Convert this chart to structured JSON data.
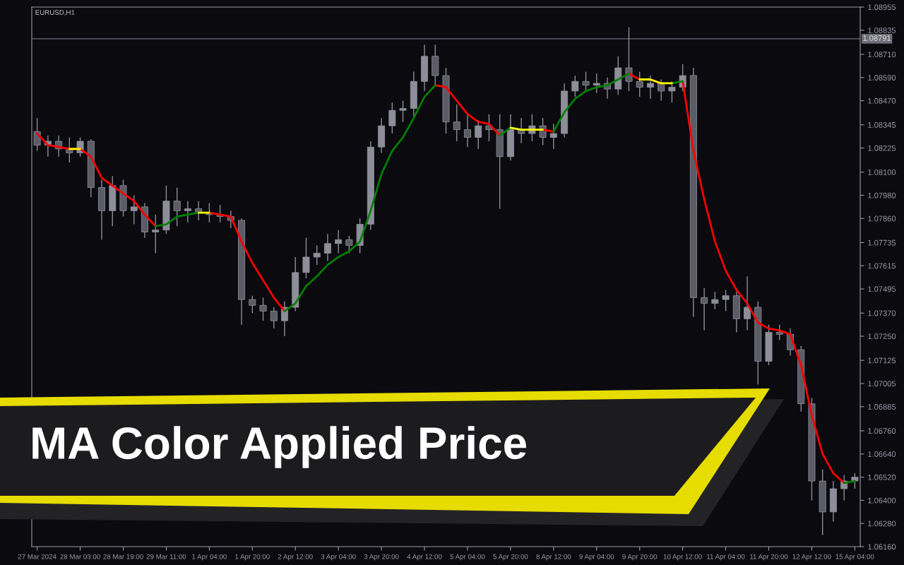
{
  "chart_data": {
    "type": "candlestick",
    "title": "MA Color Applied Price",
    "subtitle": "EURUSD,H1",
    "categories": [
      "27 Mar 2024",
      null,
      null,
      null,
      "28 Mar 03:00",
      null,
      null,
      null,
      "28 Mar 19:00",
      null,
      null,
      null,
      "29 Mar 11:00",
      null,
      null,
      null,
      "1 Apr 04:00",
      null,
      null,
      null,
      "1 Apr 20:00",
      null,
      null,
      null,
      "2 Apr 12:00",
      null,
      null,
      null,
      "3 Apr 04:00",
      null,
      null,
      null,
      "3 Apr 20:00",
      null,
      null,
      null,
      "4 Apr 12:00",
      null,
      null,
      null,
      "5 Apr 04:00",
      null,
      null,
      null,
      "5 Apr 20:00",
      null,
      null,
      null,
      "8 Apr 12:00",
      null,
      null,
      null,
      "9 Apr 04:00",
      null,
      null,
      null,
      "9 Apr 20:00",
      null,
      null,
      null,
      "10 Apr 12:00",
      null,
      null,
      null,
      "11 Apr 04:00",
      null,
      null,
      null,
      "11 Apr 20:00",
      null,
      null,
      null,
      "12 Apr 12:00",
      null,
      null,
      null,
      "15 Apr 04:00"
    ],
    "series": [
      {
        "color": "#8e8e9a",
        "ohlc": [
          [
            1.0831,
            1.0838,
            1.0821,
            1.0824
          ],
          [
            1.0824,
            1.0829,
            1.0818,
            1.0826
          ],
          [
            1.0826,
            1.0829,
            1.0818,
            1.0822
          ],
          [
            1.0822,
            1.0828,
            1.0815,
            1.082
          ],
          [
            1.082,
            1.0828,
            1.0818,
            1.0826
          ],
          [
            1.0826,
            1.0827,
            1.0797,
            1.0802
          ],
          [
            1.0802,
            1.0806,
            1.0775,
            1.079
          ],
          [
            1.079,
            1.0808,
            1.0782,
            1.0803
          ],
          [
            1.0803,
            1.0806,
            1.0787,
            1.079
          ],
          [
            1.079,
            1.0798,
            1.0783,
            1.0792
          ],
          [
            1.0792,
            1.0794,
            1.0776,
            1.0779
          ],
          [
            1.0779,
            1.0788,
            1.0768,
            1.078
          ],
          [
            1.078,
            1.0803,
            1.0778,
            1.0795
          ],
          [
            1.0795,
            1.0802,
            1.0782,
            1.079
          ],
          [
            1.079,
            1.0795,
            1.0784,
            1.0791
          ],
          [
            1.0791,
            1.0795,
            1.0785,
            1.0789
          ],
          [
            1.0789,
            1.0794,
            1.0784,
            1.0788
          ],
          [
            1.0788,
            1.0793,
            1.0784,
            1.0787
          ],
          [
            1.0787,
            1.079,
            1.0781,
            1.0785
          ],
          [
            1.0785,
            1.0786,
            1.0731,
            1.0744
          ],
          [
            1.0744,
            1.0746,
            1.0737,
            1.0741
          ],
          [
            1.0741,
            1.0745,
            1.0733,
            1.0738
          ],
          [
            1.0738,
            1.074,
            1.0729,
            1.0733
          ],
          [
            1.0733,
            1.0743,
            1.0725,
            1.074
          ],
          [
            1.074,
            1.0766,
            1.0738,
            1.0758
          ],
          [
            1.0758,
            1.0776,
            1.0755,
            1.0766
          ],
          [
            1.0766,
            1.0772,
            1.0762,
            1.0768
          ],
          [
            1.0768,
            1.0778,
            1.0764,
            1.0773
          ],
          [
            1.0773,
            1.078,
            1.0768,
            1.0775
          ],
          [
            1.0775,
            1.0777,
            1.0768,
            1.0772
          ],
          [
            1.0772,
            1.0786,
            1.0768,
            1.0783
          ],
          [
            1.0783,
            1.0826,
            1.078,
            1.0823
          ],
          [
            1.0823,
            1.0838,
            1.082,
            1.0834
          ],
          [
            1.0834,
            1.0846,
            1.083,
            1.0842
          ],
          [
            1.0842,
            1.0847,
            1.0836,
            1.0843
          ],
          [
            1.0843,
            1.0862,
            1.0838,
            1.0857
          ],
          [
            1.0857,
            1.0876,
            1.0852,
            1.087
          ],
          [
            1.087,
            1.0876,
            1.0855,
            1.086
          ],
          [
            1.086,
            1.0864,
            1.083,
            1.0836
          ],
          [
            1.0836,
            1.0845,
            1.0826,
            1.0832
          ],
          [
            1.0832,
            1.084,
            1.0823,
            1.0828
          ],
          [
            1.0828,
            1.0837,
            1.0822,
            1.0834
          ],
          [
            1.0834,
            1.084,
            1.0826,
            1.0832
          ],
          [
            1.0832,
            1.084,
            1.0791,
            1.0818
          ],
          [
            1.0818,
            1.084,
            1.0816,
            1.0832
          ],
          [
            1.0832,
            1.0838,
            1.0825,
            1.083
          ],
          [
            1.083,
            1.084,
            1.0826,
            1.0834
          ],
          [
            1.0834,
            1.0838,
            1.0824,
            1.0828
          ],
          [
            1.0828,
            1.0835,
            1.0822,
            1.083
          ],
          [
            1.083,
            1.0856,
            1.0828,
            1.0852
          ],
          [
            1.0852,
            1.086,
            1.0849,
            1.0857
          ],
          [
            1.0857,
            1.0862,
            1.0852,
            1.0855
          ],
          [
            1.0855,
            1.0861,
            1.0851,
            1.0856
          ],
          [
            1.0856,
            1.0859,
            1.0848,
            1.0853
          ],
          [
            1.0853,
            1.087,
            1.085,
            1.0864
          ],
          [
            1.0864,
            1.0885,
            1.0852,
            1.0857
          ],
          [
            1.0857,
            1.0862,
            1.0849,
            1.0854
          ],
          [
            1.0854,
            1.086,
            1.0848,
            1.0856
          ],
          [
            1.0856,
            1.0858,
            1.0847,
            1.0852
          ],
          [
            1.0852,
            1.0857,
            1.0846,
            1.0854
          ],
          [
            1.0854,
            1.0866,
            1.0852,
            1.086
          ],
          [
            1.086,
            1.0864,
            1.0735,
            1.0745
          ],
          [
            1.0745,
            1.075,
            1.0728,
            1.0742
          ],
          [
            1.0742,
            1.0748,
            1.0739,
            1.0744
          ],
          [
            1.0744,
            1.0749,
            1.0738,
            1.0746
          ],
          [
            1.0746,
            1.0748,
            1.0727,
            1.0734
          ],
          [
            1.0734,
            1.0756,
            1.0728,
            1.074
          ],
          [
            1.074,
            1.0743,
            1.07,
            1.0712
          ],
          [
            1.0712,
            1.0731,
            1.071,
            1.0727
          ],
          [
            1.0727,
            1.0731,
            1.0723,
            1.0726
          ],
          [
            1.0726,
            1.0729,
            1.0715,
            1.0718
          ],
          [
            1.0718,
            1.072,
            1.0686,
            1.069
          ],
          [
            1.069,
            1.0693,
            1.064,
            1.065
          ],
          [
            1.065,
            1.0656,
            1.0622,
            1.0634
          ],
          [
            1.0634,
            1.065,
            1.0629,
            1.0646
          ],
          [
            1.0646,
            1.0653,
            1.064,
            1.065
          ],
          [
            1.065,
            1.0654,
            1.0646,
            1.0652
          ]
        ]
      },
      {
        "type": "line",
        "color": "#ff0000",
        "values": [
          1.083,
          1.0824,
          1.0823,
          1.0822,
          1.0822,
          1.0818,
          1.0807,
          1.0803,
          1.0799,
          1.0795,
          1.0788,
          1.0782,
          null,
          null,
          null,
          null,
          1.0789,
          1.0788,
          1.0787,
          1.0774,
          1.0763,
          1.0754,
          1.0745,
          1.0738,
          null,
          null,
          null,
          null,
          null,
          null,
          null,
          null,
          null,
          null,
          null,
          null,
          null,
          1.0855,
          1.0854,
          1.0847,
          1.084,
          1.0836,
          1.0835,
          1.0829,
          null,
          null,
          null,
          1.0832,
          1.0831,
          null,
          null,
          null,
          null,
          null,
          null,
          1.0861,
          1.0858,
          1.0858,
          1.0856,
          null,
          1.0857,
          1.0821,
          1.0796,
          1.0774,
          1.0759,
          1.0749,
          1.0742,
          1.0732,
          1.0729,
          1.0728,
          1.0726,
          1.071,
          1.0684,
          1.0664,
          1.0654,
          1.0649,
          null
        ]
      },
      {
        "type": "line",
        "color": "#008000",
        "values": [
          null,
          null,
          null,
          null,
          null,
          null,
          null,
          null,
          null,
          null,
          null,
          1.0782,
          1.0783,
          1.0787,
          1.0788,
          1.0789,
          null,
          null,
          null,
          null,
          null,
          null,
          null,
          1.0738,
          1.0742,
          1.0751,
          1.0756,
          1.0762,
          1.0766,
          1.0769,
          1.0774,
          1.079,
          1.0809,
          1.0821,
          1.0828,
          1.0838,
          1.0849,
          1.0855,
          null,
          null,
          null,
          null,
          null,
          1.0829,
          1.0833,
          null,
          null,
          null,
          1.0831,
          1.0841,
          1.0848,
          1.0852,
          1.0854,
          1.0855,
          1.0858,
          1.0861,
          null,
          null,
          null,
          1.0856,
          1.0857,
          null,
          null,
          null,
          null,
          null,
          null,
          null,
          null,
          null,
          null,
          null,
          null,
          null,
          null,
          1.0649,
          1.065
        ]
      },
      {
        "type": "line",
        "color": "#ffff00",
        "values": [
          null,
          null,
          null,
          1.0822,
          1.0822,
          null,
          null,
          null,
          null,
          null,
          null,
          null,
          null,
          null,
          null,
          1.0789,
          1.0789,
          null,
          null,
          null,
          null,
          null,
          null,
          null,
          null,
          null,
          null,
          null,
          null,
          null,
          null,
          null,
          null,
          null,
          null,
          null,
          null,
          null,
          null,
          null,
          null,
          null,
          null,
          null,
          1.0833,
          1.0832,
          1.0832,
          1.0832,
          null,
          null,
          null,
          null,
          null,
          null,
          null,
          null,
          1.0858,
          1.0858,
          1.0856,
          1.0856,
          null,
          null,
          null,
          null,
          null,
          null,
          null,
          null,
          null,
          null,
          null,
          null,
          null,
          null,
          null,
          null,
          null
        ]
      }
    ],
    "ylim": [
      1.0616,
      1.08955
    ],
    "yticks": [
      1.08955,
      1.08835,
      {
        "value": 1.0871,
        "label": "1.08710"
      },
      {
        "value": 1.0859,
        "label": "1.08590"
      },
      {
        "value": 1.0847,
        "label": "1.08470"
      },
      1.08345,
      1.08225,
      {
        "value": 1.081,
        "label": "1.08100"
      },
      {
        "value": 1.0798,
        "label": "1.07980"
      },
      {
        "value": 1.0786,
        "label": "1.07860"
      },
      1.07735,
      1.07615,
      1.07495,
      {
        "value": 1.0737,
        "label": "1.07370"
      },
      {
        "value": 1.0725,
        "label": "1.07250"
      },
      1.07125,
      1.07005,
      1.06885,
      {
        "value": 1.0676,
        "label": "1.06760"
      },
      {
        "value": 1.0664,
        "label": "1.06640"
      },
      {
        "value": 1.0652,
        "label": "1.06520"
      },
      {
        "value": 1.064,
        "label": "1.06400"
      },
      {
        "value": 1.0628,
        "label": "1.06280"
      },
      {
        "value": 1.0616,
        "label": "1.06160"
      }
    ],
    "ref_lines": [
      {
        "axis": "y",
        "value": 1.08791,
        "label": "1.08791",
        "color": "#6e6e78"
      }
    ],
    "grid": false
  }
}
